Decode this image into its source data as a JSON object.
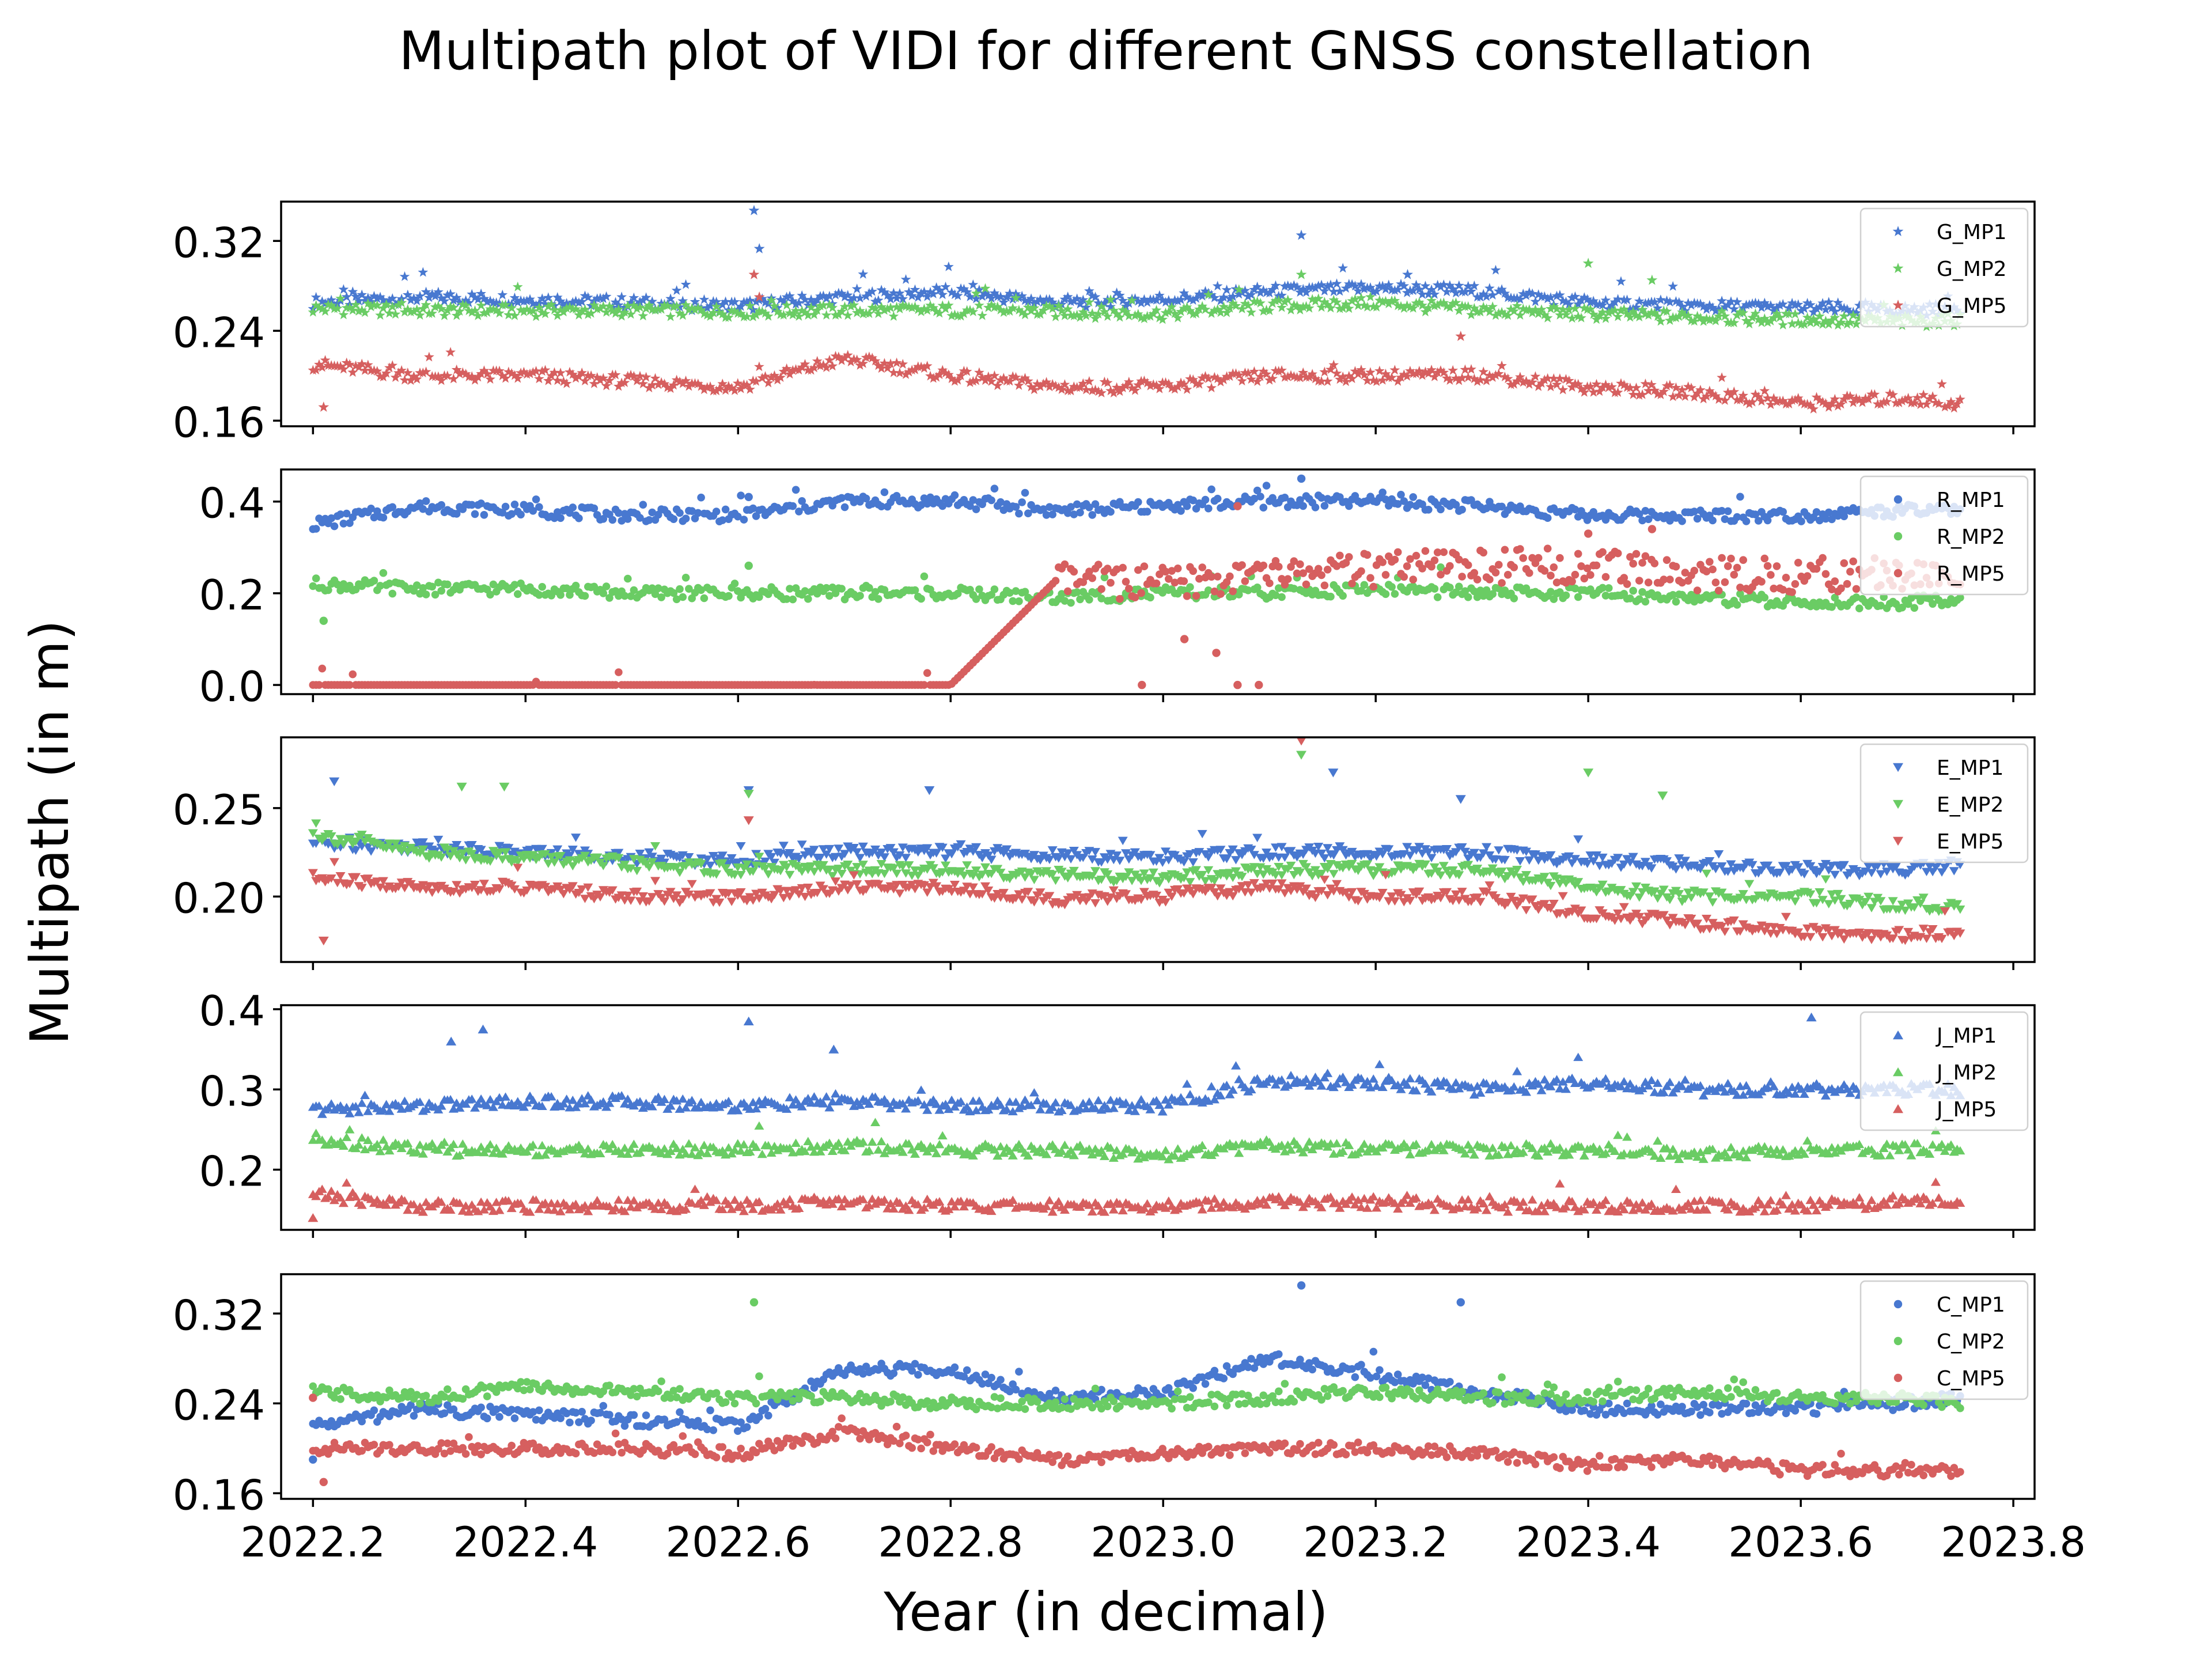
{
  "figure": {
    "title": "Multipath plot of VIDI for different GNSS constellation",
    "xlabel": "Year (in decimal)",
    "ylabel": "Multipath (in m)"
  },
  "colors": {
    "MP1": "#4878d0",
    "MP2": "#6acc64",
    "MP5": "#d65f5f"
  },
  "x_axis": {
    "range": [
      2022.17,
      2023.82
    ],
    "ticks": [
      2022.2,
      2022.4,
      2022.6,
      2022.8,
      2023.0,
      2023.2,
      2023.4,
      2023.6,
      2023.8
    ],
    "tick_labels": [
      "2022.2",
      "2022.4",
      "2022.6",
      "2022.8",
      "2023.0",
      "2023.2",
      "2023.4",
      "2023.6",
      "2023.8"
    ]
  },
  "chart_data": [
    {
      "type": "scatter",
      "constellation": "G",
      "marker": "star",
      "ylim": [
        0.155,
        0.355
      ],
      "yticks": [
        0.16,
        0.24,
        0.32
      ],
      "ytick_labels": [
        "0.16",
        "0.24",
        "0.32"
      ],
      "legend_position": "top-right",
      "x": [
        2022.2,
        2022.3,
        2022.4,
        2022.5,
        2022.6,
        2022.7,
        2022.8,
        2022.9,
        2023.0,
        2023.1,
        2023.2,
        2023.3,
        2023.4,
        2023.5,
        2023.6,
        2023.7,
        2023.75
      ],
      "series": [
        {
          "name": "G_MP1",
          "values": [
            0.265,
            0.27,
            0.268,
            0.265,
            0.262,
            0.27,
            0.275,
            0.265,
            0.268,
            0.275,
            0.278,
            0.275,
            0.265,
            0.262,
            0.26,
            0.258,
            0.26
          ],
          "outliers": [
            [
              2022.615,
              0.347
            ],
            [
              2022.62,
              0.313
            ],
            [
              2023.13,
              0.325
            ],
            [
              2023.23,
              0.29
            ]
          ]
        },
        {
          "name": "G_MP2",
          "values": [
            0.26,
            0.258,
            0.258,
            0.258,
            0.257,
            0.258,
            0.258,
            0.257,
            0.255,
            0.262,
            0.265,
            0.258,
            0.255,
            0.252,
            0.25,
            0.248,
            0.25
          ],
          "outliers": [
            [
              2023.13,
              0.29
            ],
            [
              2023.4,
              0.3
            ],
            [
              2023.46,
              0.285
            ]
          ]
        },
        {
          "name": "G_MP5",
          "values": [
            0.21,
            0.2,
            0.2,
            0.195,
            0.19,
            0.215,
            0.2,
            0.19,
            0.19,
            0.2,
            0.2,
            0.2,
            0.19,
            0.185,
            0.175,
            0.18,
            0.175
          ],
          "outliers": [
            [
              2022.21,
              0.172
            ],
            [
              2022.615,
              0.29
            ],
            [
              2022.62,
              0.27
            ],
            [
              2023.28,
              0.235
            ]
          ]
        }
      ]
    },
    {
      "type": "scatter",
      "constellation": "R",
      "marker": "circle",
      "ylim": [
        -0.02,
        0.47
      ],
      "yticks": [
        0.0,
        0.2,
        0.4
      ],
      "ytick_labels": [
        "0.0",
        "0.2",
        "0.4"
      ],
      "legend_position": "top-right",
      "x": [
        2022.2,
        2022.3,
        2022.4,
        2022.5,
        2022.6,
        2022.7,
        2022.8,
        2022.9,
        2023.0,
        2023.1,
        2023.2,
        2023.3,
        2023.4,
        2023.5,
        2023.6,
        2023.7,
        2023.75
      ],
      "series": [
        {
          "name": "R_MP1",
          "values": [
            0.35,
            0.39,
            0.38,
            0.37,
            0.37,
            0.4,
            0.4,
            0.38,
            0.39,
            0.4,
            0.4,
            0.39,
            0.37,
            0.37,
            0.37,
            0.38,
            0.38
          ],
          "outliers": [
            [
              2022.61,
              0.41
            ],
            [
              2023.13,
              0.45
            ]
          ]
        },
        {
          "name": "R_MP2",
          "values": [
            0.22,
            0.21,
            0.21,
            0.2,
            0.2,
            0.2,
            0.2,
            0.19,
            0.2,
            0.2,
            0.21,
            0.2,
            0.2,
            0.19,
            0.18,
            0.18,
            0.19
          ],
          "outliers": [
            [
              2022.21,
              0.14
            ],
            [
              2022.61,
              0.26
            ]
          ]
        },
        {
          "name": "R_MP5",
          "values": [
            0.0,
            0.0,
            0.0,
            0.0,
            0.0,
            0.0,
            0.0,
            0.23,
            0.22,
            0.24,
            0.25,
            0.26,
            0.26,
            0.24,
            0.24,
            0.24,
            0.24
          ],
          "outliers": [
            [
              2022.98,
              0.0
            ],
            [
              2023.02,
              0.1
            ],
            [
              2023.05,
              0.07
            ],
            [
              2023.07,
              0.0
            ],
            [
              2023.09,
              0.0
            ],
            [
              2023.07,
              0.39
            ],
            [
              2023.4,
              0.33
            ],
            [
              2023.46,
              0.34
            ]
          ]
        }
      ]
    },
    {
      "type": "scatter",
      "constellation": "E",
      "marker": "triangle-down",
      "ylim": [
        0.163,
        0.29
      ],
      "yticks": [
        0.2,
        0.25
      ],
      "ytick_labels": [
        "0.20",
        "0.25"
      ],
      "legend_position": "top-right",
      "x": [
        2022.2,
        2022.3,
        2022.4,
        2022.5,
        2022.6,
        2022.7,
        2022.8,
        2022.9,
        2023.0,
        2023.1,
        2023.2,
        2023.3,
        2023.4,
        2023.5,
        2023.6,
        2023.7,
        2023.75
      ],
      "series": [
        {
          "name": "E_MP1",
          "values": [
            0.23,
            0.228,
            0.225,
            0.222,
            0.22,
            0.225,
            0.225,
            0.223,
            0.222,
            0.225,
            0.225,
            0.225,
            0.22,
            0.218,
            0.215,
            0.215,
            0.218
          ],
          "outliers": [
            [
              2022.22,
              0.265
            ],
            [
              2022.61,
              0.26
            ],
            [
              2022.78,
              0.26
            ],
            [
              2023.16,
              0.27
            ],
            [
              2023.28,
              0.255
            ]
          ]
        },
        {
          "name": "E_MP2",
          "values": [
            0.235,
            0.225,
            0.222,
            0.218,
            0.215,
            0.215,
            0.215,
            0.212,
            0.21,
            0.215,
            0.215,
            0.215,
            0.205,
            0.2,
            0.2,
            0.195,
            0.195
          ],
          "outliers": [
            [
              2022.34,
              0.262
            ],
            [
              2022.38,
              0.262
            ],
            [
              2022.61,
              0.258
            ],
            [
              2023.13,
              0.28
            ],
            [
              2023.4,
              0.27
            ],
            [
              2023.47,
              0.257
            ]
          ]
        },
        {
          "name": "E_MP5",
          "values": [
            0.21,
            0.205,
            0.205,
            0.2,
            0.2,
            0.205,
            0.205,
            0.198,
            0.2,
            0.205,
            0.2,
            0.2,
            0.19,
            0.185,
            0.18,
            0.178,
            0.18
          ],
          "outliers": [
            [
              2022.21,
              0.175
            ],
            [
              2022.61,
              0.243
            ],
            [
              2023.13,
              0.288
            ]
          ]
        }
      ]
    },
    {
      "type": "scatter",
      "constellation": "J",
      "marker": "triangle-up",
      "ylim": [
        0.125,
        0.405
      ],
      "yticks": [
        0.2,
        0.3,
        0.4
      ],
      "ytick_labels": [
        "0.2",
        "0.3",
        "0.4"
      ],
      "legend_position": "top-right",
      "x": [
        2022.2,
        2022.3,
        2022.4,
        2022.5,
        2022.6,
        2022.7,
        2022.8,
        2022.9,
        2023.0,
        2023.1,
        2023.2,
        2023.3,
        2023.4,
        2023.5,
        2023.6,
        2023.7,
        2023.75
      ],
      "series": [
        {
          "name": "J_MP1",
          "values": [
            0.275,
            0.28,
            0.285,
            0.285,
            0.28,
            0.285,
            0.28,
            0.28,
            0.28,
            0.31,
            0.31,
            0.3,
            0.31,
            0.3,
            0.3,
            0.3,
            0.3
          ],
          "outliers": [
            [
              2022.33,
              0.36
            ],
            [
              2022.36,
              0.375
            ],
            [
              2022.61,
              0.385
            ],
            [
              2022.69,
              0.35
            ],
            [
              2023.61,
              0.39
            ]
          ]
        },
        {
          "name": "J_MP2",
          "values": [
            0.24,
            0.225,
            0.225,
            0.225,
            0.225,
            0.23,
            0.225,
            0.225,
            0.22,
            0.23,
            0.225,
            0.225,
            0.225,
            0.22,
            0.225,
            0.225,
            0.228
          ]
        },
        {
          "name": "J_MP5",
          "values": [
            0.17,
            0.155,
            0.155,
            0.155,
            0.155,
            0.16,
            0.155,
            0.155,
            0.155,
            0.16,
            0.16,
            0.155,
            0.155,
            0.155,
            0.155,
            0.16,
            0.158
          ],
          "outliers": [
            [
              2022.2,
              0.14
            ]
          ]
        }
      ]
    },
    {
      "type": "scatter",
      "constellation": "C",
      "marker": "circle",
      "ylim": [
        0.155,
        0.355
      ],
      "yticks": [
        0.16,
        0.24,
        0.32
      ],
      "ytick_labels": [
        "0.16",
        "0.24",
        "0.32"
      ],
      "legend_position": "top-right",
      "x": [
        2022.2,
        2022.3,
        2022.4,
        2022.5,
        2022.6,
        2022.7,
        2022.8,
        2022.9,
        2023.0,
        2023.1,
        2023.2,
        2023.3,
        2023.4,
        2023.5,
        2023.6,
        2023.7,
        2023.75
      ],
      "series": [
        {
          "name": "C_MP1",
          "values": [
            0.22,
            0.235,
            0.23,
            0.225,
            0.22,
            0.27,
            0.27,
            0.245,
            0.25,
            0.28,
            0.265,
            0.25,
            0.235,
            0.235,
            0.235,
            0.24,
            0.245
          ],
          "outliers": [
            [
              2022.2,
              0.19
            ],
            [
              2023.13,
              0.345
            ],
            [
              2023.28,
              0.33
            ]
          ]
        },
        {
          "name": "C_MP2",
          "values": [
            0.25,
            0.245,
            0.255,
            0.25,
            0.245,
            0.245,
            0.24,
            0.24,
            0.24,
            0.245,
            0.25,
            0.245,
            0.245,
            0.25,
            0.245,
            0.245,
            0.24
          ],
          "outliers": [
            [
              2022.615,
              0.33
            ]
          ]
        },
        {
          "name": "C_MP5",
          "values": [
            0.2,
            0.2,
            0.2,
            0.2,
            0.195,
            0.215,
            0.2,
            0.19,
            0.195,
            0.2,
            0.2,
            0.195,
            0.185,
            0.19,
            0.18,
            0.18,
            0.18
          ],
          "outliers": [
            [
              2022.21,
              0.17
            ],
            [
              2022.2,
              0.245
            ]
          ]
        }
      ]
    }
  ]
}
